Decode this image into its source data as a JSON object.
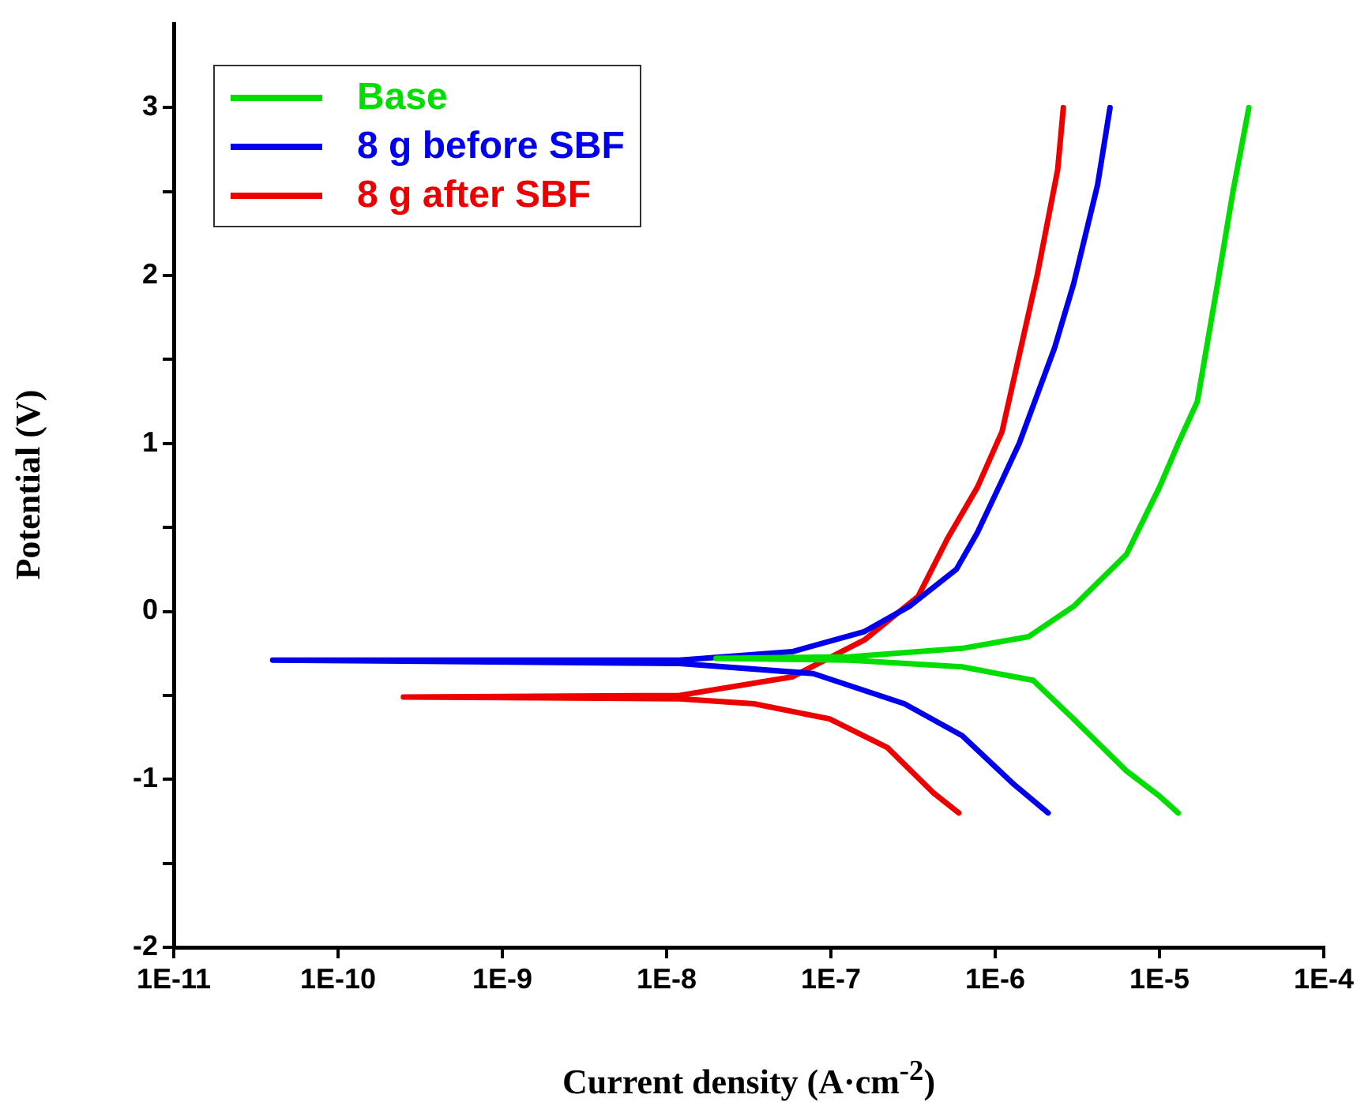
{
  "chart_data": {
    "type": "line",
    "xlabel": "Current density (A·cm$^{-2}$)",
    "ylabel": "Potential (V)",
    "log": "x",
    "legend": "top left",
    "marker": "none",
    "xlim": [
      1e-11,
      0.0001
    ],
    "ylim": [
      -2,
      3.5
    ],
    "xticks": [
      {
        "value": 1e-11,
        "label": "1E-11"
      },
      {
        "value": 1e-10,
        "label": "1E-10"
      },
      {
        "value": 1e-09,
        "label": "1E-9"
      },
      {
        "value": 1e-08,
        "label": "1E-8"
      },
      {
        "value": 1e-07,
        "label": "1E-7"
      },
      {
        "value": 1e-06,
        "label": "1E-6"
      },
      {
        "value": 1e-05,
        "label": "1E-5"
      },
      {
        "value": 0.0001,
        "label": "1E-4"
      }
    ],
    "yticks": [
      -2,
      {
        "value": -1.5,
        "label": null
      },
      -1,
      {
        "value": -0.5,
        "label": null
      },
      0,
      {
        "value": 0.5,
        "label": null
      },
      1,
      {
        "value": 1.5,
        "label": null
      },
      2,
      {
        "value": 2.5,
        "label": null
      },
      3
    ],
    "series": [
      {
        "name": "Base",
        "color": "#00dd00",
        "x": [
          1.3e-05,
          1e-05,
          6.3e-06,
          3e-06,
          1.7e-06,
          6.3e-07,
          1.3e-07,
          2e-08,
          1.3e-07,
          6.3e-07,
          1.6e-06,
          3e-06,
          6.3e-06,
          1e-05,
          1.3e-05,
          1.7e-05,
          2.3e-05,
          2.8e-05,
          3.5e-05
        ],
        "values": [
          -1.2,
          -1.1,
          -0.95,
          -0.64,
          -0.41,
          -0.33,
          -0.29,
          -0.28,
          -0.27,
          -0.22,
          -0.15,
          0.03,
          0.34,
          0.74,
          1.0,
          1.25,
          2.0,
          2.5,
          3.0
        ]
      },
      {
        "name": "8 g before SBF",
        "color": "#0000ee",
        "x": [
          2.1e-06,
          1.3e-06,
          6.3e-07,
          2.8e-07,
          7.8e-08,
          1.2e-08,
          4e-11,
          1.2e-08,
          5.8e-08,
          1.6e-07,
          3e-07,
          5.8e-07,
          7.8e-07,
          1.1e-06,
          1.4e-06,
          2.3e-06,
          3e-06,
          4.2e-06,
          5e-06
        ],
        "values": [
          -1.2,
          -1.03,
          -0.74,
          -0.55,
          -0.37,
          -0.31,
          -0.29,
          -0.29,
          -0.24,
          -0.12,
          0.03,
          0.25,
          0.47,
          0.78,
          1.0,
          1.57,
          1.95,
          2.54,
          3.0
        ]
      },
      {
        "name": "8 g after SBF",
        "color": "#ee0000",
        "x": [
          6e-07,
          4.2e-07,
          2.2e-07,
          9.8e-08,
          3.4e-08,
          1.2e-08,
          2.5e-10,
          1.2e-08,
          5.8e-08,
          1.6e-07,
          3.4e-07,
          5.1e-07,
          7.8e-07,
          1.1e-06,
          1.8e-06,
          2.4e-06,
          2.6e-06
        ],
        "values": [
          -1.2,
          -1.08,
          -0.81,
          -0.64,
          -0.55,
          -0.52,
          -0.51,
          -0.5,
          -0.39,
          -0.17,
          0.09,
          0.43,
          0.74,
          1.07,
          2.0,
          2.63,
          3.0
        ]
      }
    ]
  }
}
